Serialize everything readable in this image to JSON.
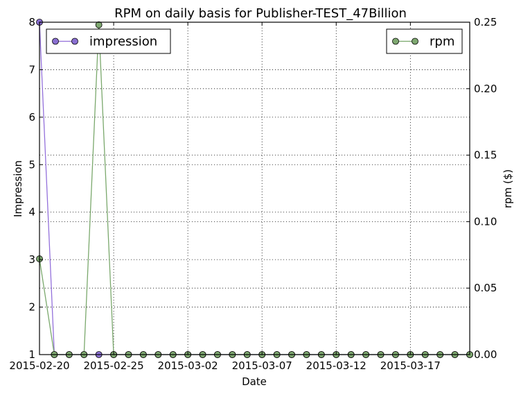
{
  "chart_data": {
    "type": "line",
    "title": "RPM on daily basis for Publisher-TEST_47Billion",
    "xlabel": "Date",
    "ylabel_left": "Impression",
    "ylabel_right": "rpm ($)",
    "x": [
      "2015-02-20",
      "2015-02-21",
      "2015-02-22",
      "2015-02-23",
      "2015-02-24",
      "2015-02-25",
      "2015-02-26",
      "2015-02-27",
      "2015-02-28",
      "2015-03-01",
      "2015-03-02",
      "2015-03-03",
      "2015-03-04",
      "2015-03-05",
      "2015-03-06",
      "2015-03-07",
      "2015-03-08",
      "2015-03-09",
      "2015-03-10",
      "2015-03-11",
      "2015-03-12",
      "2015-03-13",
      "2015-03-14",
      "2015-03-15",
      "2015-03-16",
      "2015-03-17",
      "2015-03-18",
      "2015-03-19",
      "2015-03-20",
      "2015-03-21"
    ],
    "x_ticks": [
      "2015-02-20",
      "2015-02-25",
      "2015-03-02",
      "2015-03-07",
      "2015-03-12",
      "2015-03-17"
    ],
    "ylim_left": [
      1,
      8
    ],
    "yticks_left": [
      "1",
      "2",
      "3",
      "4",
      "5",
      "6",
      "7",
      "8"
    ],
    "ylim_right": [
      0,
      0.25
    ],
    "yticks_right": [
      "0.00",
      "0.05",
      "0.10",
      "0.15",
      "0.20",
      "0.25"
    ],
    "grid": true,
    "series": [
      {
        "name": "impression",
        "axis": "left",
        "color": "#9370db",
        "marker_color": "#8a6fd1",
        "legend_position": "top-left",
        "values": [
          8,
          1,
          1,
          1,
          1,
          1,
          1,
          1,
          1,
          1,
          1,
          1,
          1,
          1,
          1,
          1,
          1,
          1,
          1,
          1,
          1,
          1,
          1,
          1,
          1,
          1,
          1,
          1,
          1,
          1
        ]
      },
      {
        "name": "rpm",
        "axis": "right",
        "color": "#7aa86c",
        "marker_color": "#7ea870",
        "legend_position": "top-right",
        "values": [
          0.072,
          0,
          0,
          0,
          0.248,
          0,
          0,
          0,
          0,
          0,
          0,
          0,
          0,
          0,
          0,
          0,
          0,
          0,
          0,
          0,
          0,
          0,
          0,
          0,
          0,
          0,
          0,
          0,
          0,
          0
        ]
      }
    ]
  }
}
